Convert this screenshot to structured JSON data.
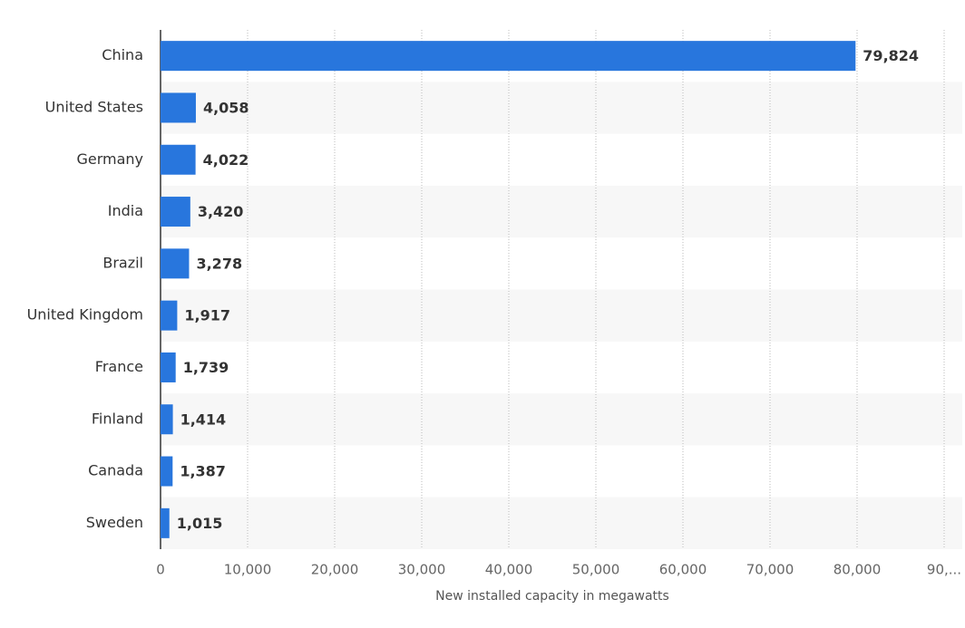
{
  "chart_data": {
    "type": "bar",
    "orientation": "horizontal",
    "x_axis_label": "New installed capacity in megawatts",
    "categories": [
      "China",
      "United States",
      "Germany",
      "India",
      "Brazil",
      "United Kingdom",
      "France",
      "Finland",
      "Canada",
      "Sweden"
    ],
    "values": [
      79824,
      4058,
      4022,
      3420,
      3278,
      1917,
      1739,
      1414,
      1387,
      1015
    ],
    "value_labels": [
      "79,824",
      "4,058",
      "4,022",
      "3,420",
      "3,278",
      "1,917",
      "1,739",
      "1,414",
      "1,387",
      "1,015"
    ],
    "color": "#2876dd",
    "xlim": [
      0,
      90000
    ],
    "xticks": [
      0,
      {
        "value": 10000,
        "label": "10,000"
      },
      {
        "value": 20000,
        "label": "20,000"
      },
      {
        "value": 30000,
        "label": "30,000"
      },
      {
        "value": 40000,
        "label": "40,000"
      },
      {
        "value": 50000,
        "label": "50,000"
      },
      {
        "value": 60000,
        "label": "60,000"
      },
      {
        "value": 70000,
        "label": "70,000"
      },
      {
        "value": 80000,
        "label": "80,000"
      },
      {
        "value": 90000,
        "label": "90,..."
      }
    ],
    "grid": true
  }
}
